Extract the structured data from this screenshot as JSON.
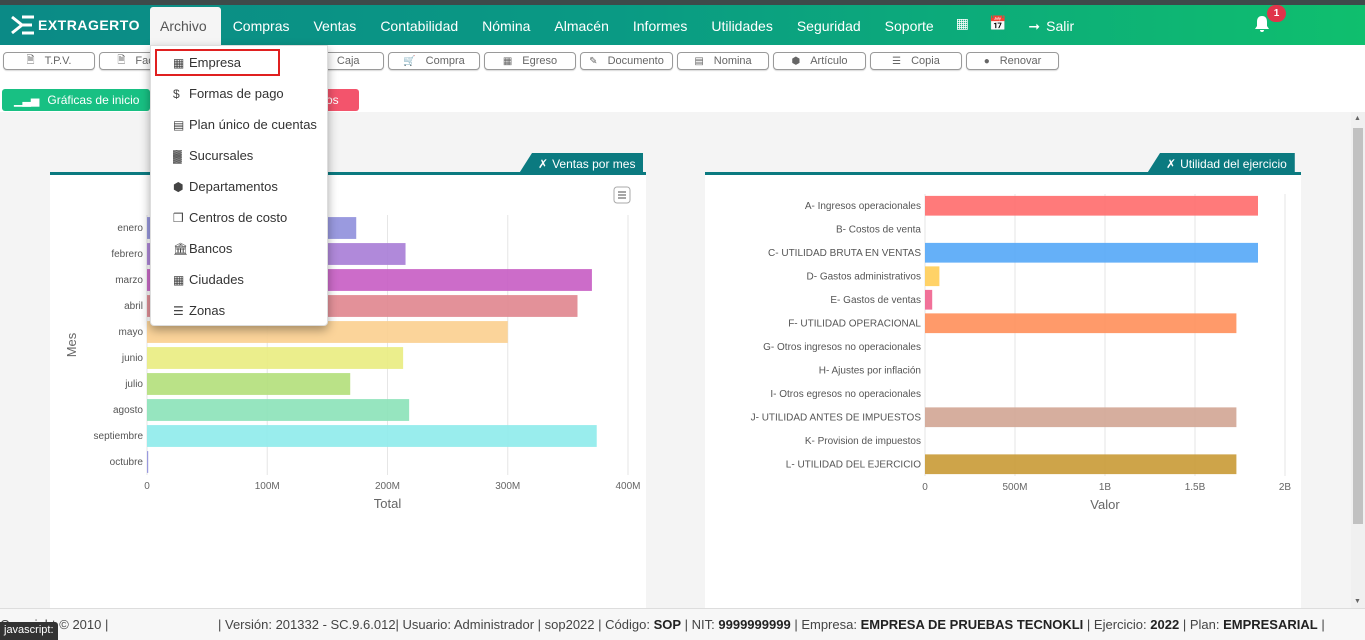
{
  "app": {
    "logo_text": "EXTRAGERTO"
  },
  "nav": {
    "items": [
      "Archivo",
      "Compras",
      "Ventas",
      "Contabilidad",
      "Nómina",
      "Almacén",
      "Informes",
      "Utilidades",
      "Seguridad",
      "Soporte"
    ],
    "logout": "Salir",
    "notifications": "1"
  },
  "toolbar": {
    "buttons": [
      {
        "label": "T.P.V.",
        "icon": "file-icon"
      },
      {
        "label": "Factura",
        "icon": "file-icon"
      },
      {
        "label": "Caja",
        "icon": "cash-icon"
      },
      {
        "label": "Compra",
        "icon": "cart-icon"
      },
      {
        "label": "Egreso",
        "icon": "money-icon"
      },
      {
        "label": "Documento",
        "icon": "edit-icon"
      },
      {
        "label": "Nomina",
        "icon": "id-card-icon"
      },
      {
        "label": "Artículo",
        "icon": "cube-icon"
      },
      {
        "label": "Copia",
        "icon": "database-icon"
      },
      {
        "label": "Renovar",
        "icon": "user-circle-icon"
      }
    ]
  },
  "tabs": {
    "charts": "Gráficas de inicio",
    "other_suffix": "os"
  },
  "dropdown": {
    "items": [
      {
        "label": "Empresa",
        "icon": "building-icon"
      },
      {
        "label": "Formas de pago",
        "icon": "dollar-icon"
      },
      {
        "label": "Plan único de cuentas",
        "icon": "list-icon"
      },
      {
        "label": "Sucursales",
        "icon": "branch-icon"
      },
      {
        "label": "Departamentos",
        "icon": "cube-icon"
      },
      {
        "label": "Centros de costo",
        "icon": "cubes-icon"
      },
      {
        "label": "Bancos",
        "icon": "bank-icon"
      },
      {
        "label": "Ciudades",
        "icon": "city-icon"
      },
      {
        "label": "Zonas",
        "icon": "map-icon"
      }
    ]
  },
  "panels": {
    "left_title": "Ventas por mes",
    "right_title": "Utilidad del ejercicio"
  },
  "chart_data": [
    {
      "type": "bar",
      "orientation": "horizontal",
      "categories": [
        "enero",
        "febrero",
        "marzo",
        "abril",
        "mayo",
        "junio",
        "julio",
        "agosto",
        "septiembre",
        "octubre"
      ],
      "values": [
        174,
        215,
        370,
        358,
        300,
        213,
        169,
        218,
        374,
        1
      ],
      "value_unit": "M",
      "colors": [
        "#8f8fdc",
        "#a77cd6",
        "#c75cc3",
        "#e0858e",
        "#fbcf8f",
        "#e9ec7f",
        "#b3df7a",
        "#8be2b8",
        "#8eebeb",
        "#8f8fdc"
      ],
      "xlabel": "Total",
      "ylabel": "Mes",
      "xticks": [
        "0",
        "100M",
        "200M",
        "300M",
        "400M"
      ],
      "xlim": [
        0,
        400
      ]
    },
    {
      "type": "bar",
      "orientation": "horizontal",
      "categories": [
        "A- Ingresos operacionales",
        "B- Costos de venta",
        "C- UTILIDAD BRUTA EN VENTAS",
        "D- Gastos administrativos",
        "E- Gastos de ventas",
        "F- UTILIDAD OPERACIONAL",
        "G- Otros ingresos no operacionales",
        "H- Ajustes por inflación",
        "I- Otros egresos no operacionales",
        "J- UTILIDAD ANTES DE IMPUESTOS",
        "K- Provision de impuestos",
        "L- UTILIDAD DEL EJERCICIO"
      ],
      "values": [
        1.85,
        0,
        1.85,
        0.08,
        0.04,
        1.73,
        0,
        0,
        0,
        1.73,
        0,
        1.73
      ],
      "value_unit": "B",
      "colors": [
        "#ff6b6b",
        "#ff9f40",
        "#54a7f7",
        "#ffcd56",
        "#f0628e",
        "#ff8f5a",
        "#4bc0c0",
        "#9966ff",
        "#c9cbcf",
        "#d1a593",
        "#8fd16f",
        "#c99a35"
      ],
      "xlabel": "Valor",
      "xticks": [
        "0",
        "500M",
        "1B",
        "1.5B",
        "2B"
      ],
      "xlim": [
        0,
        2
      ]
    }
  ],
  "footer": {
    "copyright": "Copyright © 2010 |",
    "version": "| Versión: 201332 - SC.9.6.012| Usuario: Administrador | sop2022 | Código:",
    "codigo": "SOP",
    "nit_label": "| NIT:",
    "nit": "9999999999",
    "empresa_label": "| Empresa:",
    "empresa": "EMPRESA DE PRUEBAS TECNOKLI",
    "ejercicio_label": "| Ejercicio:",
    "ejercicio": "2022",
    "plan_label": "| Plan:",
    "plan": "EMPRESARIAL",
    "plan_end": "|"
  },
  "status_tip": "javascript:"
}
